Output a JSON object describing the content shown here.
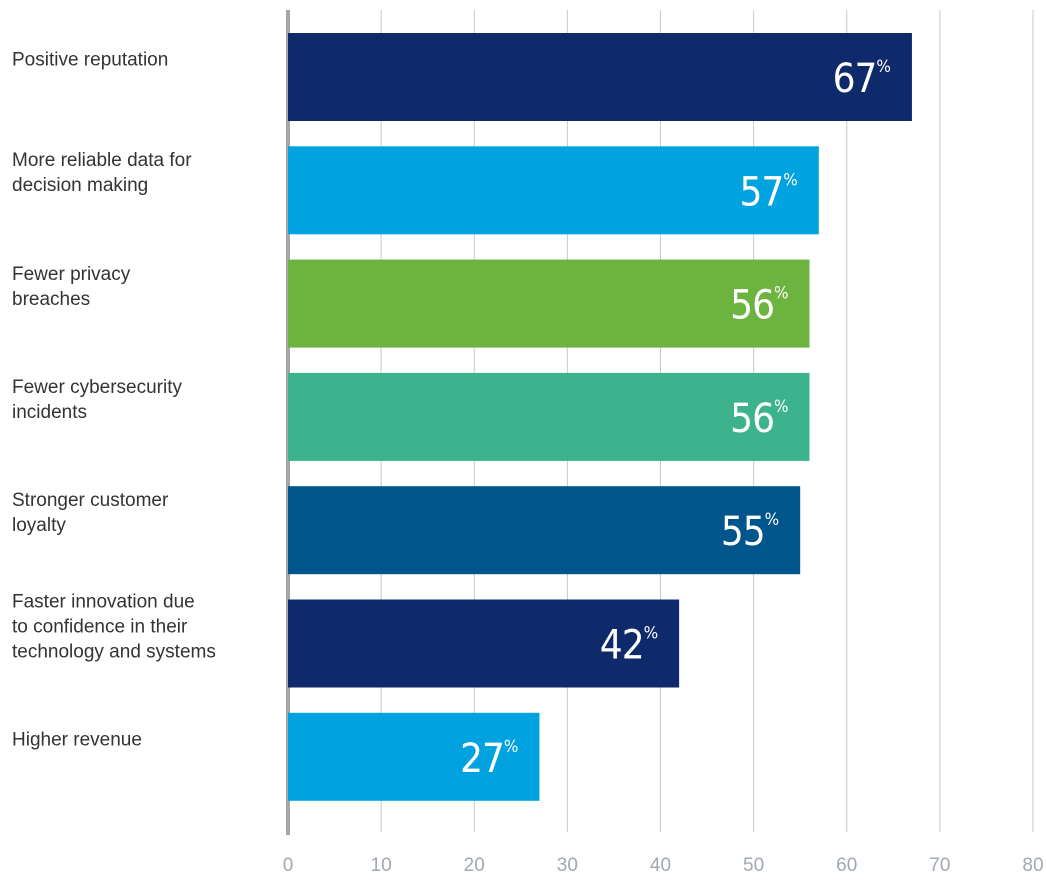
{
  "chart_data": {
    "type": "barh",
    "categories": [
      "Positive reputation",
      "More reliable data for\ndecision making",
      "Fewer privacy\nbreaches",
      "Fewer cybersecurity\nincidents",
      "Stronger customer\nloyalty",
      "Faster innovation due\nto confidence in their\ntechnology and systems",
      "Higher revenue"
    ],
    "values": [
      67,
      57,
      56,
      56,
      55,
      42,
      27
    ],
    "value_labels": [
      "67%",
      "57%",
      "56%",
      "56%",
      "55%",
      "42%",
      "27%"
    ],
    "colors": [
      "#0f2a6b",
      "#00a3e0",
      "#6db33f",
      "#3db38d",
      "#00558c",
      "#0f2a6b",
      "#00a3e0"
    ],
    "xlim": [
      0,
      80
    ],
    "xticks": [
      0,
      10,
      20,
      30,
      40,
      50,
      60,
      70,
      80
    ],
    "grid": true
  }
}
